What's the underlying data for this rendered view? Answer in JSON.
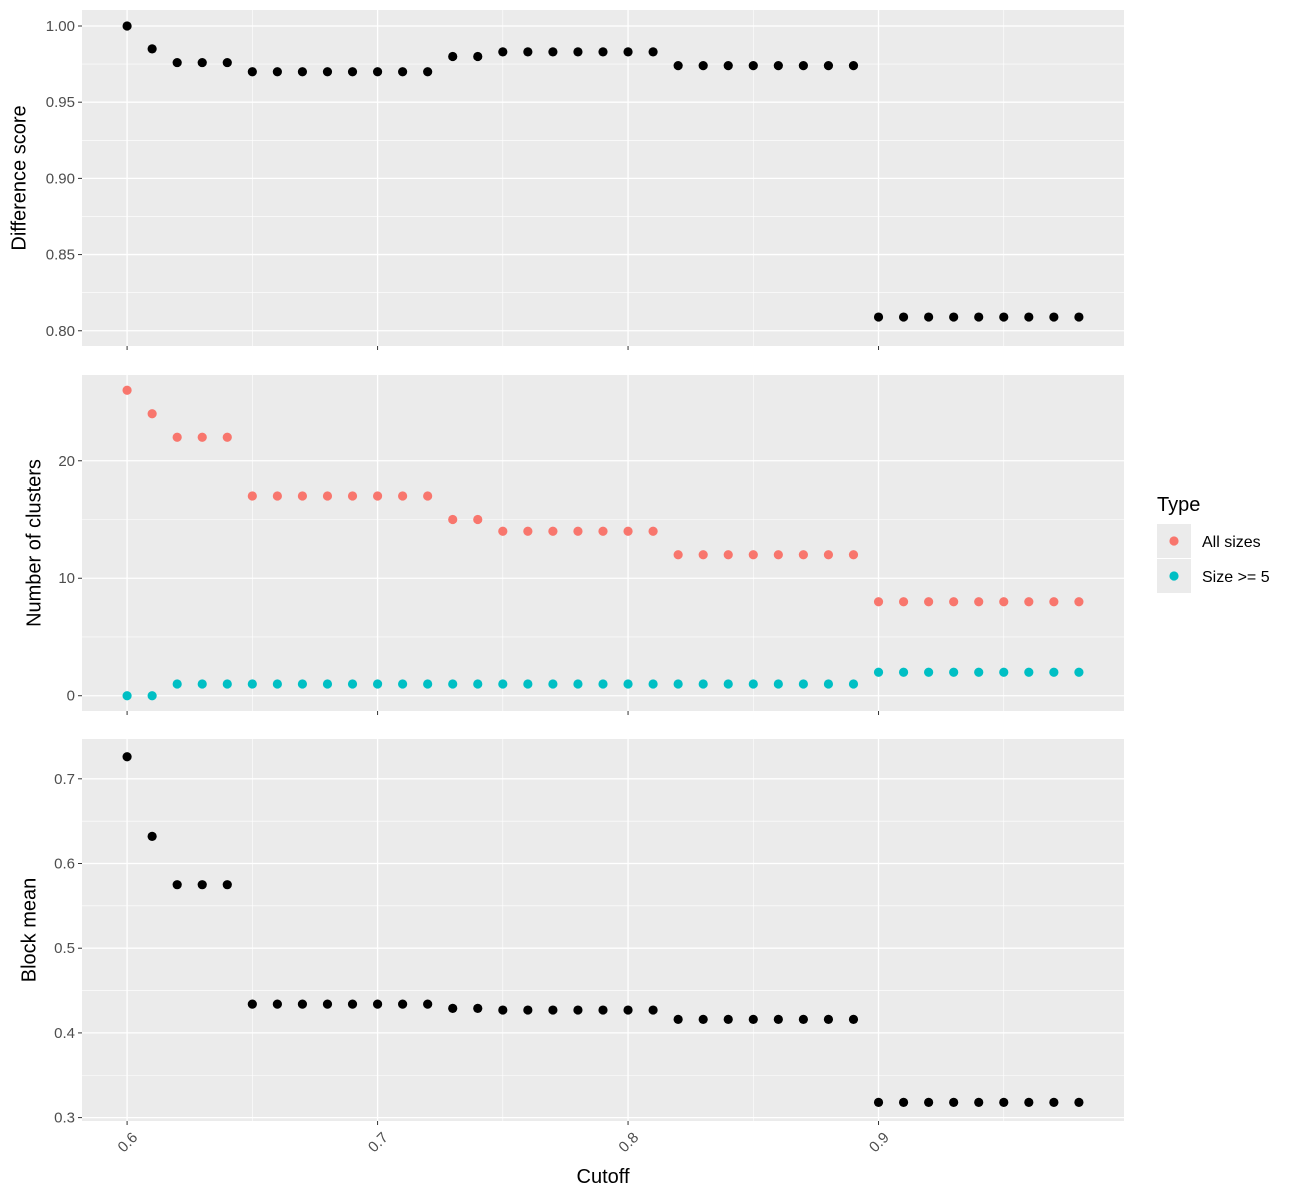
{
  "figure": {
    "xlabel": "Cutoff"
  },
  "colors": {
    "panel_bg": "#EBEBEB",
    "grid": "#FFFFFF",
    "black": "#000000",
    "all_sizes": "#F8766D",
    "size_ge_5": "#00BFC4"
  },
  "legend": {
    "title": "Type",
    "items": [
      {
        "label": "All sizes",
        "color": "#F8766D"
      },
      {
        "label": "Size >= 5",
        "color": "#00BFC4"
      }
    ]
  },
  "chart_data": [
    {
      "type": "scatter",
      "ylabel": "Difference score",
      "xlim": [
        0.582,
        0.998
      ],
      "ylim": [
        0.79,
        1.0105
      ],
      "x_ticks": [
        "0.6",
        "0.7",
        "0.8",
        "0.9"
      ],
      "y_ticks": [
        "0.80",
        "0.85",
        "0.90",
        "0.95",
        "1.00"
      ],
      "series": [
        {
          "color": "#000000",
          "points": [
            [
              0.6,
              1.0
            ],
            [
              0.61,
              0.985
            ],
            [
              0.62,
              0.976
            ],
            [
              0.63,
              0.976
            ],
            [
              0.64,
              0.976
            ],
            [
              0.65,
              0.97
            ],
            [
              0.66,
              0.97
            ],
            [
              0.67,
              0.97
            ],
            [
              0.68,
              0.97
            ],
            [
              0.69,
              0.97
            ],
            [
              0.7,
              0.97
            ],
            [
              0.71,
              0.97
            ],
            [
              0.72,
              0.97
            ],
            [
              0.73,
              0.98
            ],
            [
              0.74,
              0.98
            ],
            [
              0.75,
              0.983
            ],
            [
              0.76,
              0.983
            ],
            [
              0.77,
              0.983
            ],
            [
              0.78,
              0.983
            ],
            [
              0.79,
              0.983
            ],
            [
              0.8,
              0.983
            ],
            [
              0.81,
              0.983
            ],
            [
              0.82,
              0.974
            ],
            [
              0.83,
              0.974
            ],
            [
              0.84,
              0.974
            ],
            [
              0.85,
              0.974
            ],
            [
              0.86,
              0.974
            ],
            [
              0.87,
              0.974
            ],
            [
              0.88,
              0.974
            ],
            [
              0.89,
              0.974
            ],
            [
              0.9,
              0.809
            ],
            [
              0.91,
              0.809
            ],
            [
              0.92,
              0.809
            ],
            [
              0.93,
              0.809
            ],
            [
              0.94,
              0.809
            ],
            [
              0.95,
              0.809
            ],
            [
              0.96,
              0.809
            ],
            [
              0.97,
              0.809
            ],
            [
              0.98,
              0.809
            ]
          ]
        }
      ]
    },
    {
      "type": "scatter",
      "ylabel": "Number of clusters",
      "xlim": [
        0.582,
        0.998
      ],
      "ylim": [
        -1.3,
        27.3
      ],
      "x_ticks": [
        "0.6",
        "0.7",
        "0.8",
        "0.9"
      ],
      "y_ticks": [
        "0",
        "10",
        "20"
      ],
      "series": [
        {
          "name": "All sizes",
          "color": "#F8766D",
          "points": [
            [
              0.6,
              26
            ],
            [
              0.61,
              24
            ],
            [
              0.62,
              22
            ],
            [
              0.63,
              22
            ],
            [
              0.64,
              22
            ],
            [
              0.65,
              17
            ],
            [
              0.66,
              17
            ],
            [
              0.67,
              17
            ],
            [
              0.68,
              17
            ],
            [
              0.69,
              17
            ],
            [
              0.7,
              17
            ],
            [
              0.71,
              17
            ],
            [
              0.72,
              17
            ],
            [
              0.73,
              15
            ],
            [
              0.74,
              15
            ],
            [
              0.75,
              14
            ],
            [
              0.76,
              14
            ],
            [
              0.77,
              14
            ],
            [
              0.78,
              14
            ],
            [
              0.79,
              14
            ],
            [
              0.8,
              14
            ],
            [
              0.81,
              14
            ],
            [
              0.82,
              12
            ],
            [
              0.83,
              12
            ],
            [
              0.84,
              12
            ],
            [
              0.85,
              12
            ],
            [
              0.86,
              12
            ],
            [
              0.87,
              12
            ],
            [
              0.88,
              12
            ],
            [
              0.89,
              12
            ],
            [
              0.9,
              8
            ],
            [
              0.91,
              8
            ],
            [
              0.92,
              8
            ],
            [
              0.93,
              8
            ],
            [
              0.94,
              8
            ],
            [
              0.95,
              8
            ],
            [
              0.96,
              8
            ],
            [
              0.97,
              8
            ],
            [
              0.98,
              8
            ]
          ]
        },
        {
          "name": "Size >= 5",
          "color": "#00BFC4",
          "points": [
            [
              0.6,
              0
            ],
            [
              0.61,
              0
            ],
            [
              0.62,
              1
            ],
            [
              0.63,
              1
            ],
            [
              0.64,
              1
            ],
            [
              0.65,
              1
            ],
            [
              0.66,
              1
            ],
            [
              0.67,
              1
            ],
            [
              0.68,
              1
            ],
            [
              0.69,
              1
            ],
            [
              0.7,
              1
            ],
            [
              0.71,
              1
            ],
            [
              0.72,
              1
            ],
            [
              0.73,
              1
            ],
            [
              0.74,
              1
            ],
            [
              0.75,
              1
            ],
            [
              0.76,
              1
            ],
            [
              0.77,
              1
            ],
            [
              0.78,
              1
            ],
            [
              0.79,
              1
            ],
            [
              0.8,
              1
            ],
            [
              0.81,
              1
            ],
            [
              0.82,
              1
            ],
            [
              0.83,
              1
            ],
            [
              0.84,
              1
            ],
            [
              0.85,
              1
            ],
            [
              0.86,
              1
            ],
            [
              0.87,
              1
            ],
            [
              0.88,
              1
            ],
            [
              0.89,
              1
            ],
            [
              0.9,
              2
            ],
            [
              0.91,
              2
            ],
            [
              0.92,
              2
            ],
            [
              0.93,
              2
            ],
            [
              0.94,
              2
            ],
            [
              0.95,
              2
            ],
            [
              0.96,
              2
            ],
            [
              0.97,
              2
            ],
            [
              0.98,
              2
            ]
          ]
        }
      ]
    },
    {
      "type": "scatter",
      "ylabel": "Block mean",
      "xlim": [
        0.582,
        0.998
      ],
      "ylim": [
        0.296,
        0.747
      ],
      "x_ticks": [
        "0.6",
        "0.7",
        "0.8",
        "0.9"
      ],
      "y_ticks": [
        "0.3",
        "0.4",
        "0.5",
        "0.6",
        "0.7"
      ],
      "series": [
        {
          "color": "#000000",
          "points": [
            [
              0.6,
              0.726
            ],
            [
              0.61,
              0.632
            ],
            [
              0.62,
              0.575
            ],
            [
              0.63,
              0.575
            ],
            [
              0.64,
              0.575
            ],
            [
              0.65,
              0.434
            ],
            [
              0.66,
              0.434
            ],
            [
              0.67,
              0.434
            ],
            [
              0.68,
              0.434
            ],
            [
              0.69,
              0.434
            ],
            [
              0.7,
              0.434
            ],
            [
              0.71,
              0.434
            ],
            [
              0.72,
              0.434
            ],
            [
              0.73,
              0.429
            ],
            [
              0.74,
              0.429
            ],
            [
              0.75,
              0.427
            ],
            [
              0.76,
              0.427
            ],
            [
              0.77,
              0.427
            ],
            [
              0.78,
              0.427
            ],
            [
              0.79,
              0.427
            ],
            [
              0.8,
              0.427
            ],
            [
              0.81,
              0.427
            ],
            [
              0.82,
              0.416
            ],
            [
              0.83,
              0.416
            ],
            [
              0.84,
              0.416
            ],
            [
              0.85,
              0.416
            ],
            [
              0.86,
              0.416
            ],
            [
              0.87,
              0.416
            ],
            [
              0.88,
              0.416
            ],
            [
              0.89,
              0.416
            ],
            [
              0.9,
              0.318
            ],
            [
              0.91,
              0.318
            ],
            [
              0.92,
              0.318
            ],
            [
              0.93,
              0.318
            ],
            [
              0.94,
              0.318
            ],
            [
              0.95,
              0.318
            ],
            [
              0.96,
              0.318
            ],
            [
              0.97,
              0.318
            ],
            [
              0.98,
              0.318
            ]
          ]
        }
      ]
    }
  ]
}
